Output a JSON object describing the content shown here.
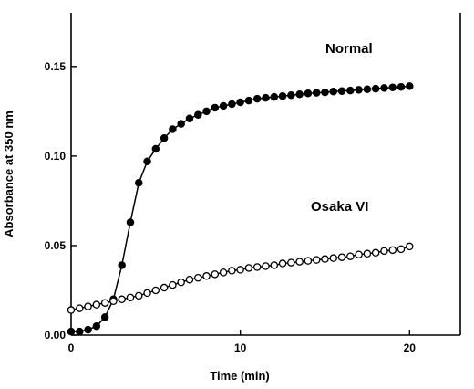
{
  "chart_data": {
    "type": "line",
    "xlabel": "Time (min)",
    "ylabel": "Absorbance at 350 nm",
    "xlim": [
      0,
      23
    ],
    "ylim": [
      0,
      0.18
    ],
    "xticks": [
      0,
      10,
      20
    ],
    "xtick_labels": [
      "0",
      "10",
      "20"
    ],
    "yticks": [
      0,
      0.05,
      0.1,
      0.15
    ],
    "ytick_labels": [
      "0.00",
      "0.05",
      "0.10",
      "0.15"
    ],
    "grid": false,
    "legend": "none",
    "series": [
      {
        "name": "Normal",
        "marker": "filled-circle",
        "x": [
          0,
          0.5,
          1,
          1.5,
          2,
          2.5,
          3,
          3.5,
          4,
          4.5,
          5,
          5.5,
          6,
          6.5,
          7,
          7.5,
          8,
          8.5,
          9,
          9.5,
          10,
          10.5,
          11,
          11.5,
          12,
          12.5,
          13,
          13.5,
          14,
          14.5,
          15,
          15.5,
          16,
          16.5,
          17,
          17.5,
          18,
          18.5,
          19,
          19.5,
          20
        ],
        "y": [
          0.002,
          0.002,
          0.003,
          0.005,
          0.01,
          0.02,
          0.039,
          0.063,
          0.085,
          0.097,
          0.104,
          0.11,
          0.115,
          0.118,
          0.121,
          0.123,
          0.125,
          0.127,
          0.128,
          0.129,
          0.13,
          0.131,
          0.132,
          0.1325,
          0.133,
          0.1335,
          0.134,
          0.1345,
          0.135,
          0.1353,
          0.1356,
          0.136,
          0.1363,
          0.1366,
          0.137,
          0.1373,
          0.1376,
          0.138,
          0.1383,
          0.1386,
          0.139
        ]
      },
      {
        "name": "Osaka VI",
        "marker": "open-circle",
        "x": [
          0,
          0.5,
          1,
          1.5,
          2,
          2.5,
          3,
          3.5,
          4,
          4.5,
          5,
          5.5,
          6,
          6.5,
          7,
          7.5,
          8,
          8.5,
          9,
          9.5,
          10,
          10.5,
          11,
          11.5,
          12,
          12.5,
          13,
          13.5,
          14,
          14.5,
          15,
          15.5,
          16,
          16.5,
          17,
          17.5,
          18,
          18.5,
          19,
          19.5,
          20
        ],
        "y": [
          0.014,
          0.015,
          0.016,
          0.017,
          0.018,
          0.019,
          0.02,
          0.021,
          0.022,
          0.0235,
          0.025,
          0.0265,
          0.028,
          0.0295,
          0.031,
          0.032,
          0.033,
          0.034,
          0.035,
          0.036,
          0.0365,
          0.0375,
          0.038,
          0.0385,
          0.039,
          0.04,
          0.0405,
          0.041,
          0.0415,
          0.042,
          0.0425,
          0.043,
          0.0435,
          0.044,
          0.045,
          0.0455,
          0.046,
          0.047,
          0.0475,
          0.048,
          0.0495
        ]
      }
    ]
  }
}
